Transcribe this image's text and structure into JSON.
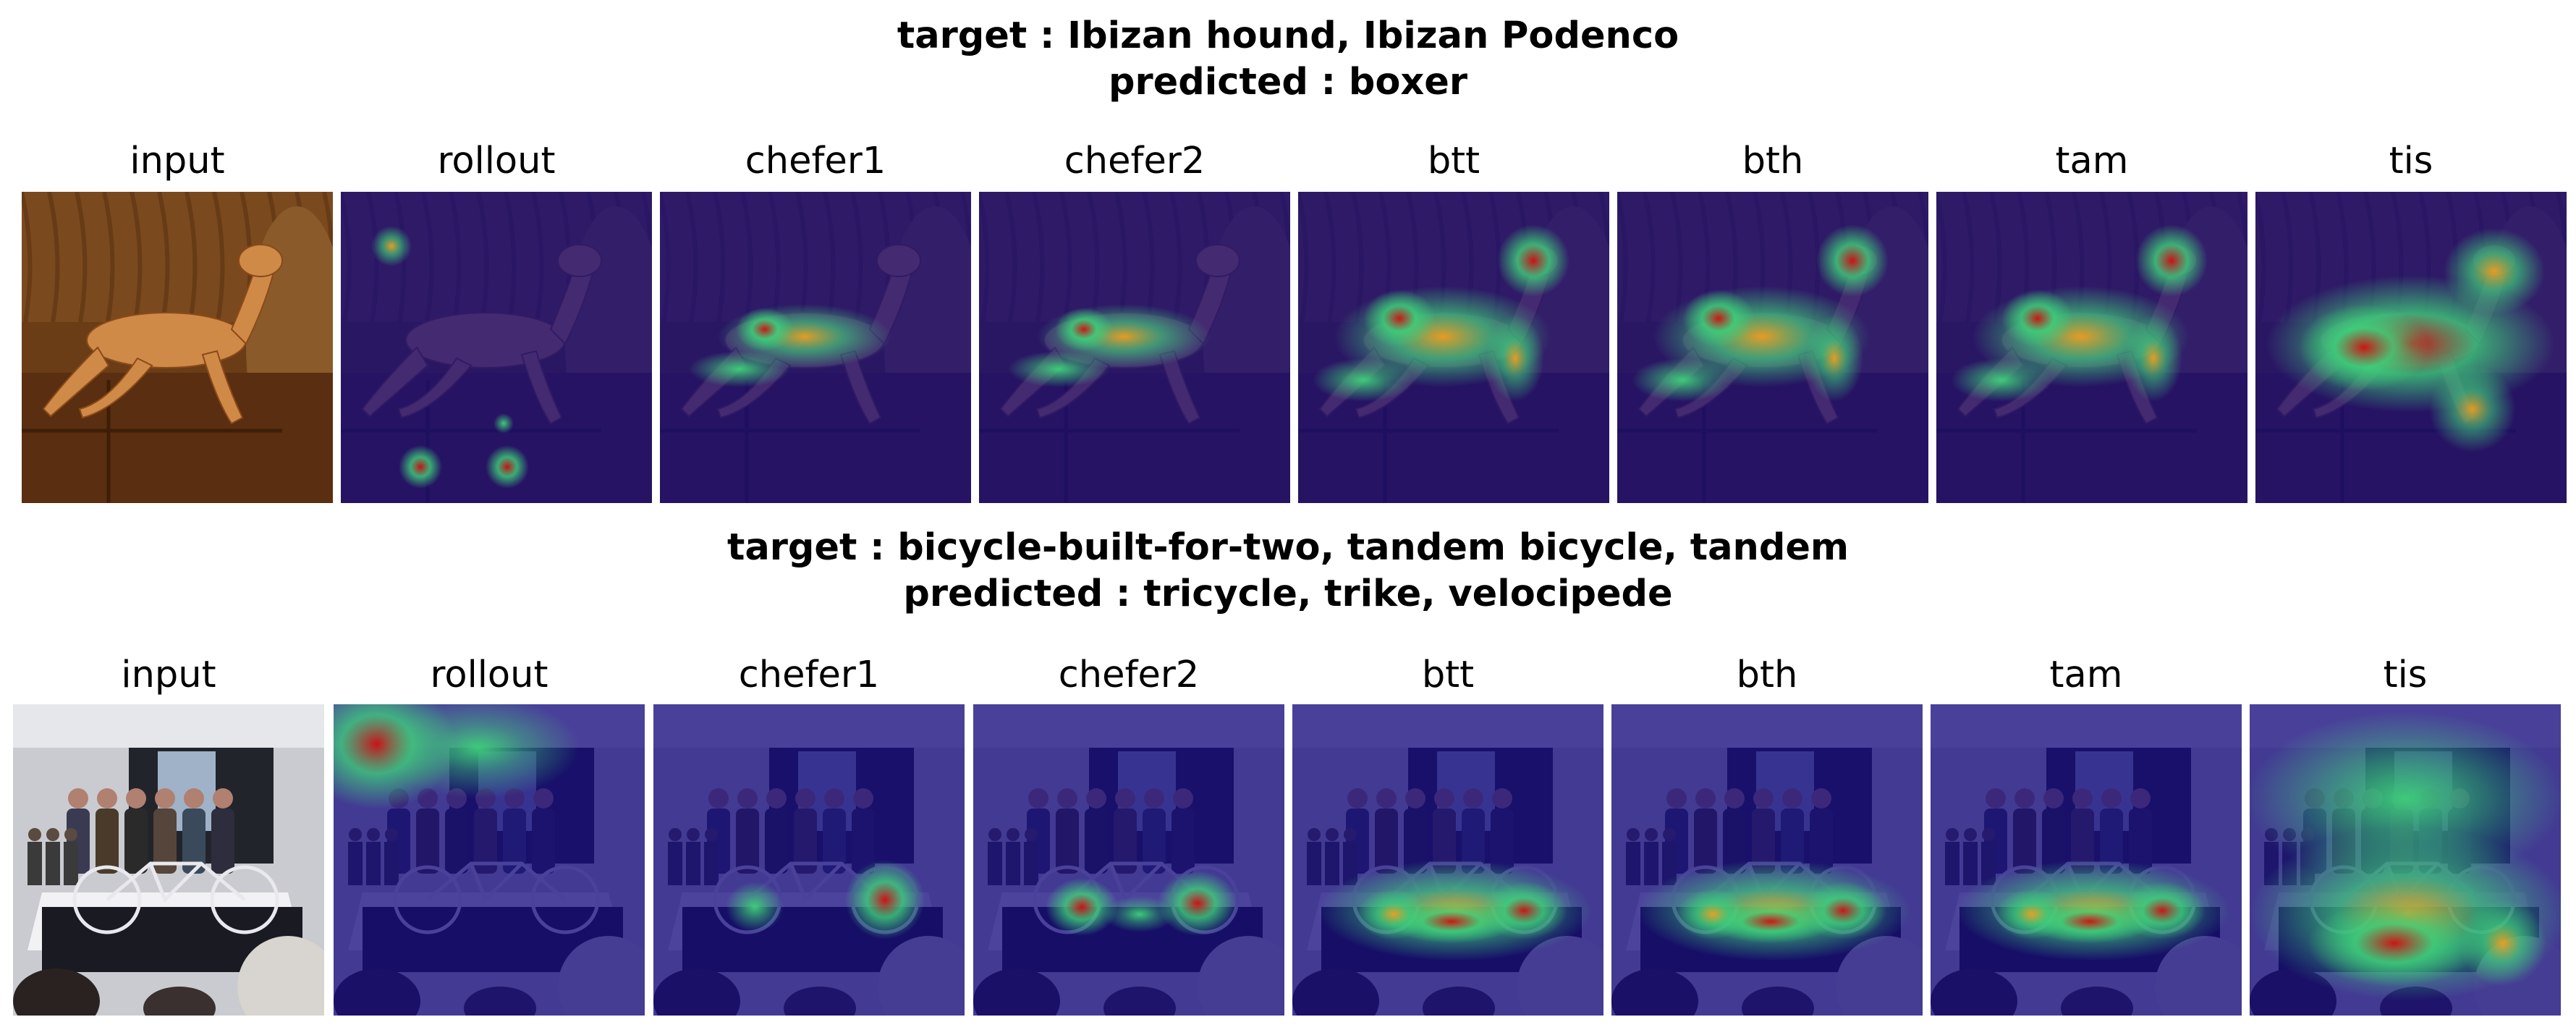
{
  "rows": [
    {
      "target_line": "target : Ibizan hound, Ibizan Podenco",
      "predicted_line": "predicted : boxer",
      "scene": "dog-on-couch",
      "panels": [
        {
          "label": "input",
          "heat": "none"
        },
        {
          "label": "rollout",
          "heat": "rollout"
        },
        {
          "label": "chefer1",
          "heat": "body-small"
        },
        {
          "label": "chefer2",
          "heat": "body-small"
        },
        {
          "label": "btt",
          "heat": "body-head"
        },
        {
          "label": "bth",
          "heat": "body-head"
        },
        {
          "label": "tam",
          "heat": "body-head"
        },
        {
          "label": "tis",
          "heat": "body-wide"
        }
      ]
    },
    {
      "target_line": "target : bicycle-built-for-two, tandem bicycle, tandem",
      "predicted_line": "predicted : tricycle, trike, velocipede",
      "scene": "tandem-bicycle-expo",
      "panels": [
        {
          "label": "input",
          "heat": "none"
        },
        {
          "label": "rollout",
          "heat": "corner"
        },
        {
          "label": "chefer1",
          "heat": "wheel-right"
        },
        {
          "label": "chefer2",
          "heat": "wheels-both"
        },
        {
          "label": "btt",
          "heat": "bike-band"
        },
        {
          "label": "bth",
          "heat": "bike-band"
        },
        {
          "label": "tam",
          "heat": "bike-band"
        },
        {
          "label": "tis",
          "heat": "bike-wide"
        }
      ]
    }
  ],
  "colors": {
    "heat_low": "#1a0d8a",
    "heat_mid": "#3fd27a",
    "heat_high": "#d01010"
  }
}
